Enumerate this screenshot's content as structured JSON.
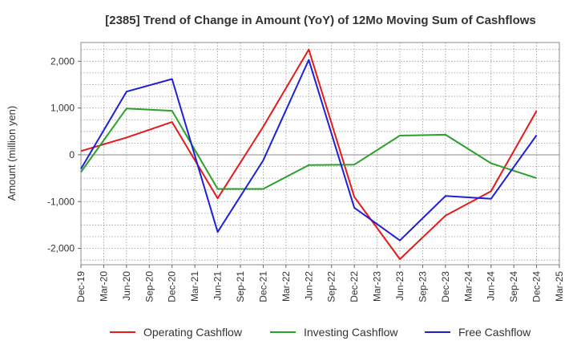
{
  "chart_data": {
    "type": "line",
    "title": "[2385]  Trend of Change in Amount (YoY) of 12Mo Moving Sum of Cashflows",
    "xlabel": "",
    "ylabel": "Amount (million yen)",
    "ylim": [
      -2350,
      2400
    ],
    "yticks": [
      2000,
      1000,
      0,
      -1000,
      -2000
    ],
    "ytick_labels": [
      "2,000",
      "1,000",
      "0",
      "-1,000",
      "-2,000"
    ],
    "categories": [
      "Dec-19",
      "Mar-20",
      "Jun-20",
      "Sep-20",
      "Dec-20",
      "Mar-21",
      "Jun-21",
      "Sep-21",
      "Dec-21",
      "Mar-22",
      "Jun-22",
      "Sep-22",
      "Dec-22",
      "Mar-23",
      "Jun-23",
      "Sep-23",
      "Dec-23",
      "Mar-24",
      "Jun-24",
      "Sep-24",
      "Dec-24",
      "Mar-25"
    ],
    "grid": true,
    "legend_position": "bottom",
    "series": [
      {
        "name": "Operating Cashflow",
        "color": "#e31a1c",
        "values": [
          80,
          null,
          370,
          null,
          700,
          null,
          -930,
          null,
          600,
          null,
          2250,
          null,
          -900,
          null,
          -2230,
          null,
          -1300,
          null,
          -780,
          null,
          940,
          null
        ]
      },
      {
        "name": "Investing Cashflow",
        "color": "#2ca02c",
        "values": [
          -370,
          null,
          990,
          null,
          940,
          null,
          -730,
          null,
          -730,
          null,
          -220,
          null,
          -210,
          null,
          410,
          null,
          430,
          null,
          -180,
          null,
          -500,
          null
        ]
      },
      {
        "name": "Free Cashflow",
        "color": "#1f1fd6",
        "values": [
          -300,
          null,
          1350,
          null,
          1620,
          null,
          -1650,
          null,
          -120,
          null,
          2030,
          null,
          -1130,
          null,
          -1830,
          null,
          -880,
          null,
          -940,
          null,
          420,
          null
        ]
      }
    ]
  }
}
